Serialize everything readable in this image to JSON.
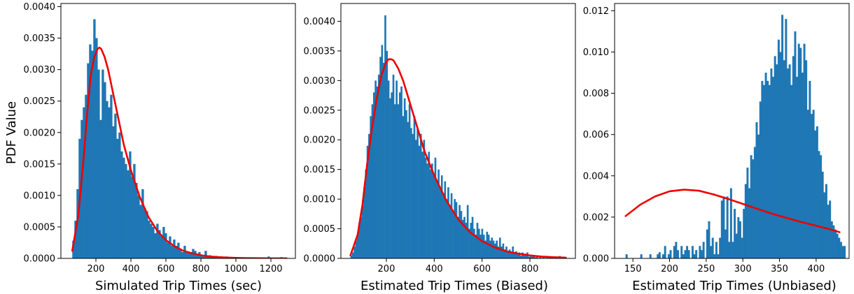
{
  "colors": {
    "bars": "#1f77b4",
    "curve": "#ee0000",
    "axes": "#000000"
  },
  "chart_data": [
    {
      "type": "bar",
      "title": "",
      "xlabel": "Simulated Trip Times (sec)",
      "ylabel": "PDF Value",
      "xlim": [
        0,
        1340
      ],
      "ylim": [
        0,
        0.00405
      ],
      "xticks": [
        200,
        400,
        600,
        800,
        1000,
        1200
      ],
      "yticks": [
        0.0,
        0.0005,
        0.001,
        0.0015,
        0.002,
        0.0025,
        0.003,
        0.0035,
        0.004
      ],
      "ytick_labels": [
        "0.0000",
        "0.0005",
        "0.0010",
        "0.0015",
        "0.0020",
        "0.0025",
        "0.0030",
        "0.0035",
        "0.0040"
      ],
      "histogram": {
        "x_start": 65,
        "bin_width": 12,
        "values": [
          0.00028,
          0.0006,
          0.0011,
          0.0019,
          0.0022,
          0.0024,
          0.0026,
          0.0031,
          0.0034,
          0.0033,
          0.0038,
          0.0035,
          0.003,
          0.0022,
          0.003,
          0.0028,
          0.0025,
          0.0024,
          0.0026,
          0.0021,
          0.0023,
          0.0019,
          0.002,
          0.0017,
          0.0016,
          0.0015,
          0.0014,
          0.0017,
          0.0013,
          0.0015,
          0.0012,
          0.001,
          0.00085,
          0.0011,
          0.0008,
          0.00075,
          0.0006,
          0.00055,
          0.0005,
          0.0004,
          0.00055,
          0.00045,
          0.00035,
          0.0005,
          0.0004,
          0.00025,
          0.00035,
          0.0002,
          0.0003,
          0.0002,
          0.00025,
          0.00015,
          0.0001,
          0.0002,
          0.0001,
          8e-05,
          0.0001,
          0.00015,
          0.00012,
          6e-05,
          0.0001,
          5e-05,
          5e-05,
          0.00012,
          4e-05,
          5e-05,
          2e-05,
          3e-05,
          4e-05,
          2e-05,
          3e-05,
          1e-05,
          2e-05,
          3e-05,
          0.0,
          1e-05,
          2e-05,
          0.0,
          1e-05,
          0.0,
          0.0,
          1e-05,
          0.0,
          0.0,
          0.0,
          0.0,
          0.0,
          0.0,
          0.0,
          0.0,
          0.0,
          0.0,
          0.0,
          3e-05,
          0.0,
          0.0,
          0.0,
          0.0,
          0.0,
          2e-05
        ]
      },
      "curve": {
        "x": [
          65,
          100,
          130,
          150,
          170,
          190,
          210,
          220,
          230,
          250,
          270,
          300,
          330,
          360,
          400,
          450,
          500,
          550,
          600,
          650,
          700,
          750,
          800,
          850,
          900,
          950,
          1000,
          1050,
          1100,
          1150,
          1200,
          1250,
          1290
        ],
        "y": [
          0.00012,
          0.0007,
          0.0016,
          0.0023,
          0.0029,
          0.0032,
          0.00333,
          0.00335,
          0.00333,
          0.0032,
          0.003,
          0.0026,
          0.0022,
          0.0018,
          0.0014,
          0.00098,
          0.00066,
          0.00044,
          0.00029,
          0.00019,
          0.00012,
          8e-05,
          5e-05,
          3e-05,
          2e-05,
          1.3e-05,
          8e-06,
          5e-06,
          3e-06,
          2e-06,
          1e-06,
          5e-07,
          3e-07
        ]
      }
    },
    {
      "type": "bar",
      "title": "",
      "xlabel": "Estimated Trip Times (Biased)",
      "ylabel": "",
      "xlim": [
        10,
        990
      ],
      "ylim": [
        0,
        0.0043
      ],
      "xticks": [
        200,
        400,
        600,
        800
      ],
      "yticks": [
        0.0,
        0.0005,
        0.001,
        0.0015,
        0.002,
        0.0025,
        0.003,
        0.0035,
        0.004
      ],
      "ytick_labels": [
        "0.0000",
        "0.0005",
        "0.0010",
        "0.0015",
        "0.0020",
        "0.0025",
        "0.0030",
        "0.0035",
        "0.0040"
      ],
      "histogram": {
        "x_start": 50,
        "bin_width": 6.75,
        "values": [
          5e-05,
          0.0001,
          0.0002,
          0.0003,
          0.0004,
          0.0006,
          0.0007,
          0.0009,
          0.0012,
          0.0015,
          0.0019,
          0.0021,
          0.0024,
          0.0026,
          0.0028,
          0.003,
          0.0029,
          0.0031,
          0.0034,
          0.0036,
          0.0033,
          0.0041,
          0.0035,
          0.003,
          0.0027,
          0.0028,
          0.0031,
          0.0026,
          0.003,
          0.0026,
          0.0028,
          0.0029,
          0.0024,
          0.0027,
          0.0025,
          0.0023,
          0.0026,
          0.0022,
          0.0021,
          0.0024,
          0.002,
          0.0022,
          0.0019,
          0.0021,
          0.0018,
          0.002,
          0.0017,
          0.0016,
          0.0018,
          0.0015,
          0.0016,
          0.0014,
          0.0017,
          0.0013,
          0.0015,
          0.0012,
          0.0014,
          0.0011,
          0.0013,
          0.001,
          0.0012,
          0.0009,
          0.0011,
          0.0008,
          0.001,
          0.00095,
          0.0007,
          0.0009,
          0.0008,
          0.00065,
          0.0007,
          0.0006,
          0.0009,
          0.0005,
          0.0006,
          0.0007,
          0.0005,
          0.0004,
          0.0006,
          0.0005,
          0.0004,
          0.0005,
          0.0004,
          0.0003,
          0.00045,
          0.0004,
          0.0003,
          0.00035,
          0.0003,
          0.00025,
          0.0003,
          0.0002,
          0.00035,
          0.0002,
          0.00025,
          0.00015,
          0.0002,
          0.0001,
          0.00015,
          0.0001,
          0.0002,
          0.0001,
          0.00012,
          8e-05,
          0.0001,
          5e-05,
          0.0001,
          5e-05,
          8e-05,
          0.0001,
          3e-05,
          5e-05,
          3e-05,
          3e-05,
          2e-05,
          3e-05,
          1e-05,
          2e-05,
          0.0,
          2e-05,
          0.0,
          1e-05,
          0.0,
          3e-05,
          0.0,
          0.0,
          1e-05,
          0.0,
          0.0,
          4e-05,
          0.0,
          0.0,
          0.0
        ]
      },
      "curve": {
        "x": [
          50,
          80,
          100,
          120,
          140,
          160,
          180,
          200,
          210,
          220,
          230,
          250,
          270,
          300,
          330,
          360,
          400,
          450,
          500,
          550,
          600,
          650,
          700,
          750,
          800,
          850,
          900,
          950
        ],
        "y": [
          5e-05,
          0.0004,
          0.0009,
          0.0016,
          0.0022,
          0.0027,
          0.0031,
          0.00332,
          0.00336,
          0.00336,
          0.00334,
          0.0032,
          0.003,
          0.0026,
          0.0022,
          0.0018,
          0.0014,
          0.00098,
          0.00066,
          0.00044,
          0.00029,
          0.00019,
          0.00012,
          8e-05,
          5e-05,
          3e-05,
          2e-05,
          1.3e-05
        ]
      }
    },
    {
      "type": "bar",
      "title": "",
      "xlabel": "Estimated Trip Times (Unbiased)",
      "ylabel": "",
      "xlim": [
        125,
        445
      ],
      "ylim": [
        0,
        0.01235
      ],
      "xticks": [
        150,
        200,
        250,
        300,
        350,
        400
      ],
      "yticks": [
        0.0,
        0.002,
        0.004,
        0.006,
        0.008,
        0.01,
        0.012
      ],
      "ytick_labels": [
        "0.000",
        "0.002",
        "0.004",
        "0.006",
        "0.008",
        "0.010",
        "0.012"
      ],
      "histogram": {
        "x_start": 140,
        "bin_width": 2.5,
        "values": [
          0.0002,
          0.0,
          0.0,
          0.0,
          0.0,
          0.0,
          0.0,
          0.0,
          0.0002,
          0.0,
          0.0,
          0.0,
          0.0,
          0.0002,
          0.0,
          0.0,
          0.0,
          0.0002,
          0.0003,
          0.0,
          0.0002,
          0.0006,
          0.0,
          0.0002,
          0.0004,
          0.0,
          0.0006,
          0.0008,
          0.0004,
          0.0,
          0.0006,
          0.0002,
          0.0004,
          0.0006,
          0.0004,
          0.0,
          0.0006,
          0.0002,
          0.0004,
          0.0,
          0.0006,
          0.0004,
          0.0008,
          0.0,
          0.0014,
          0.0018,
          0.0006,
          0.001,
          0.0002,
          0.0008,
          0.0002,
          0.001,
          0.0028,
          0.003,
          0.0014,
          0.003,
          0.0008,
          0.0034,
          0.0008,
          0.0024,
          0.0012,
          0.002,
          0.0018,
          0.001,
          0.0024,
          0.0036,
          0.0044,
          0.0034,
          0.005,
          0.0048,
          0.0054,
          0.0066,
          0.006,
          0.0076,
          0.0086,
          0.0084,
          0.009,
          0.0086,
          0.0084,
          0.0092,
          0.0088,
          0.0098,
          0.0094,
          0.0106,
          0.01,
          0.0118,
          0.0096,
          0.0116,
          0.0092,
          0.0094,
          0.0084,
          0.0098,
          0.011,
          0.0088,
          0.0104,
          0.0102,
          0.009,
          0.0104,
          0.0096,
          0.0072,
          0.0086,
          0.007,
          0.0072,
          0.0062,
          0.0064,
          0.0052,
          0.005,
          0.0042,
          0.0032,
          0.0036,
          0.0026,
          0.0028,
          0.0018,
          0.0016,
          0.0014,
          0.0012,
          0.001,
          0.0008,
          0.0006,
          0.0006
        ]
      },
      "curve": {
        "x": [
          140,
          160,
          180,
          200,
          220,
          240,
          260,
          280,
          300,
          320,
          340,
          360,
          380,
          400,
          420,
          432
        ],
        "y": [
          0.00205,
          0.0026,
          0.003,
          0.00325,
          0.00333,
          0.00328,
          0.0031,
          0.00288,
          0.00264,
          0.0024,
          0.00216,
          0.00196,
          0.00176,
          0.00158,
          0.0014,
          0.00127
        ]
      }
    }
  ]
}
